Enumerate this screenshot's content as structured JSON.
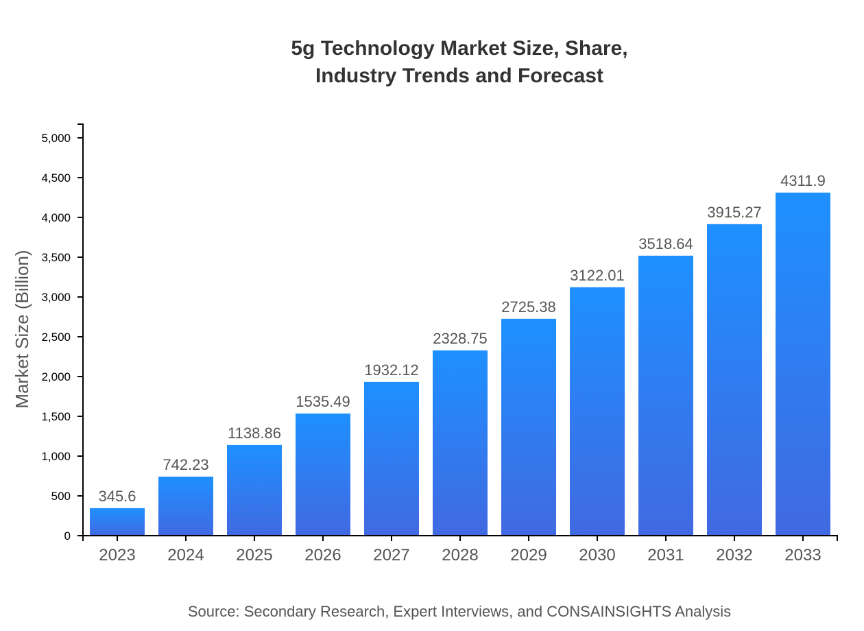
{
  "chart_data": {
    "type": "bar",
    "title_lines": [
      "5g Technology Market Size, Share,",
      "Industry Trends and Forecast"
    ],
    "xlabel": "",
    "ylabel": "Market Size (Billion)",
    "categories": [
      "2023",
      "2024",
      "2025",
      "2026",
      "2027",
      "2028",
      "2029",
      "2030",
      "2031",
      "2032",
      "2033"
    ],
    "values": [
      345.6,
      742.23,
      1138.86,
      1535.49,
      1932.12,
      2328.75,
      2725.38,
      3122.01,
      3518.64,
      3915.27,
      4311.9
    ],
    "ylim": [
      0,
      5172
    ],
    "yticks": [
      0,
      500,
      1000,
      1500,
      2000,
      2500,
      3000,
      3500,
      4000,
      4500,
      5000
    ],
    "ytick_labels": [
      "0",
      "500",
      "1,000",
      "1,500",
      "2,000",
      "2,500",
      "3,000",
      "3,500",
      "4,000",
      "4,500",
      "5,000"
    ],
    "grid": false,
    "bar_gradient": {
      "top": "#1e90ff",
      "bottom": "#4169e1"
    },
    "source": "Source: Secondary Research, Expert Interviews, and CONSAINSIGHTS Analysis"
  }
}
